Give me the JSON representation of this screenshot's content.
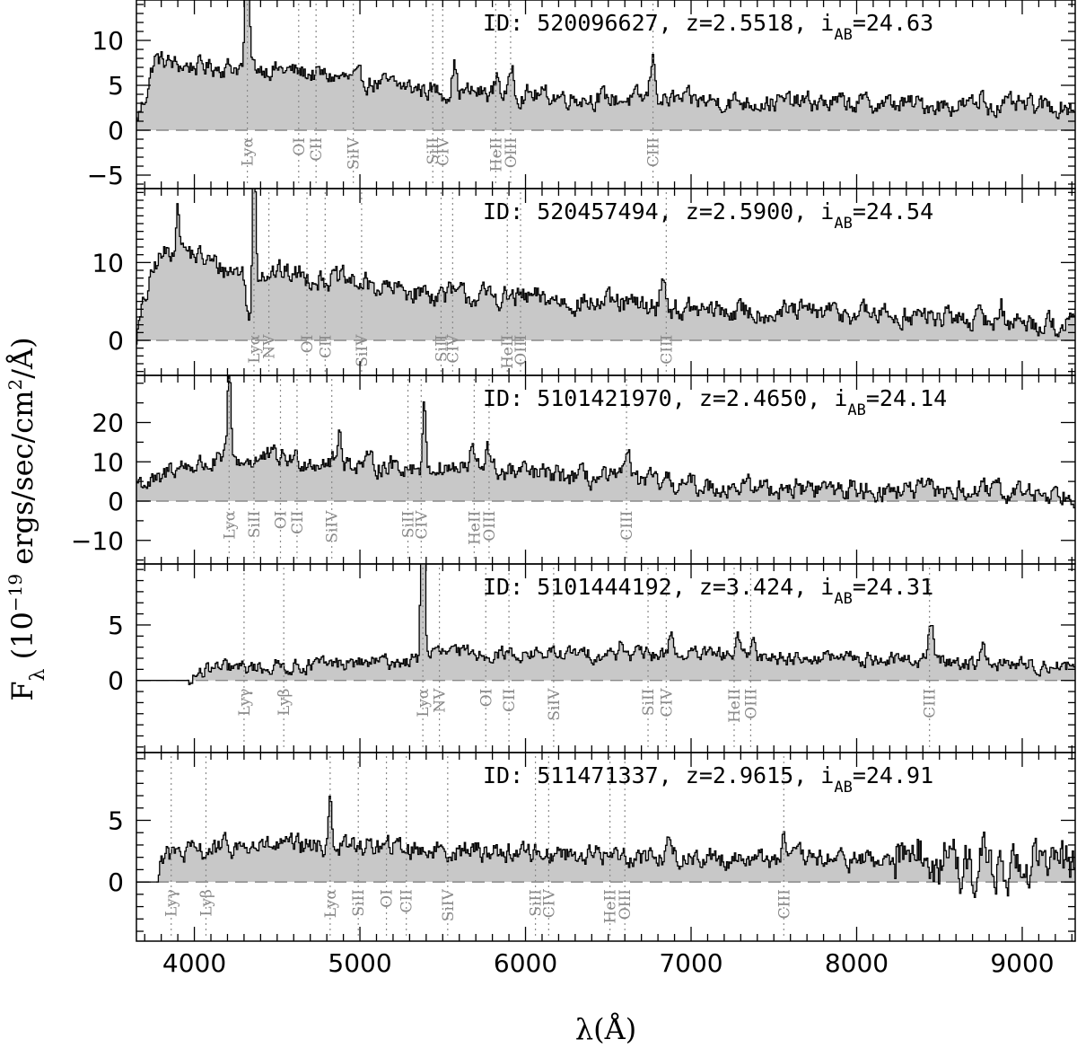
{
  "chart_data": {
    "type": "line",
    "xlabel": "λ(Å)",
    "ylabel": "Fλ (10⁻¹⁹ ergs/sec/cm²/Å)",
    "xlim": [
      3650,
      9320
    ],
    "x_ticks": [
      4000,
      5000,
      6000,
      7000,
      8000,
      9000
    ],
    "grid": false,
    "legend": "none",
    "colors": {
      "fill": "#c8c8c8",
      "line": "#000000",
      "marker": "#8a8a8a",
      "zero_line": "#888888"
    },
    "panels": [
      {
        "id_label": "ID: 520096627, z=2.5518, i",
        "id_sub": "AB",
        "id_mag": "=24.63",
        "ylim": [
          -6.5,
          14.5
        ],
        "yticks": [
          -5,
          0,
          5,
          10
        ],
        "ytick_labels": [
          "−5",
          "0",
          "5",
          "10"
        ],
        "continuum": [
          [
            3650,
            1.0
          ],
          [
            3700,
            3.5
          ],
          [
            3760,
            8.0
          ],
          [
            3900,
            7.2
          ],
          [
            4400,
            7.0
          ],
          [
            4700,
            6.3
          ],
          [
            5000,
            5.5
          ],
          [
            5500,
            4.3
          ],
          [
            6000,
            4.0
          ],
          [
            6500,
            3.5
          ],
          [
            7000,
            3.3
          ],
          [
            8000,
            3.0
          ],
          [
            9300,
            2.6
          ]
        ],
        "noise": 0.9,
        "emission": [
          [
            4320,
            22,
            10
          ],
          [
            5570,
            3.2,
            12
          ],
          [
            5830,
            2.2,
            12
          ],
          [
            5920,
            3.0,
            12
          ],
          [
            6770,
            4.5,
            16
          ],
          [
            8760,
            2.0,
            10
          ]
        ],
        "lines": [
          [
            "Lyα",
            4320
          ],
          [
            "OI",
            4630
          ],
          [
            "CII",
            4735
          ],
          [
            "SiIV",
            4960
          ],
          [
            "SiII",
            5440
          ],
          [
            "CIV",
            5500
          ],
          [
            "HeII",
            5820
          ],
          [
            "OIII",
            5910
          ],
          [
            "CIII",
            6770
          ]
        ],
        "label_y": -0.4
      },
      {
        "id_label": "ID: 520457494, z=2.5900, i",
        "id_sub": "AB",
        "id_mag": "=24.54",
        "ylim": [
          -4.5,
          19.5
        ],
        "yticks": [
          0,
          10
        ],
        "ytick_labels": [
          "0",
          "10"
        ],
        "continuum": [
          [
            3650,
            0.5
          ],
          [
            3700,
            5.0
          ],
          [
            3780,
            10.5
          ],
          [
            3900,
            12.0
          ],
          [
            4200,
            9.0
          ],
          [
            4400,
            9.0
          ],
          [
            4800,
            8.0
          ],
          [
            5200,
            6.5
          ],
          [
            5600,
            5.8
          ],
          [
            6000,
            5.4
          ],
          [
            6500,
            4.7
          ],
          [
            7000,
            3.8
          ],
          [
            8000,
            3.5
          ],
          [
            9300,
            2.0
          ]
        ],
        "noise": 1.2,
        "emission": [
          [
            3900,
            5.0,
            12
          ],
          [
            4360,
            22,
            10
          ],
          [
            6830,
            4.5,
            15
          ],
          [
            8870,
            2.5,
            12
          ]
        ],
        "absorption": [
          [
            4340,
            8.0,
            20
          ]
        ],
        "lines": [
          [
            "Lyα",
            4360
          ],
          [
            "NV",
            4450
          ],
          [
            "OI",
            4680
          ],
          [
            "CII",
            4790
          ],
          [
            "SiIV",
            5010
          ],
          [
            "SiII",
            5490
          ],
          [
            "CIV",
            5560
          ],
          [
            "HeII",
            5890
          ],
          [
            "OIII",
            5970
          ],
          [
            "CIII",
            6850
          ]
        ],
        "label_y": 1.2
      },
      {
        "id_label": "ID: 5101421970, z=2.4650, i",
        "id_sub": "AB",
        "id_mag": "=24.14",
        "ylim": [
          -16,
          32
        ],
        "yticks": [
          -10,
          0,
          10,
          20
        ],
        "ytick_labels": [
          "−10",
          "0",
          "10",
          "20"
        ],
        "continuum": [
          [
            3650,
            5.0
          ],
          [
            3800,
            4.5
          ],
          [
            3850,
            8.5
          ],
          [
            4200,
            10.0
          ],
          [
            4500,
            11.0
          ],
          [
            5000,
            9.5
          ],
          [
            5500,
            8.5
          ],
          [
            6000,
            7.0
          ],
          [
            6500,
            5.5
          ],
          [
            7000,
            4.0
          ],
          [
            8000,
            3.0
          ],
          [
            9300,
            2.0
          ]
        ],
        "noise": 2.2,
        "emission": [
          [
            4210,
            24,
            10
          ],
          [
            4880,
            8.0,
            12
          ],
          [
            5390,
            15,
            10
          ],
          [
            5680,
            6.0,
            12
          ],
          [
            5770,
            8.0,
            12
          ],
          [
            6620,
            10,
            14
          ]
        ],
        "lines": [
          [
            "Lyα",
            4210
          ],
          [
            "SiII",
            4360
          ],
          [
            "OI",
            4520
          ],
          [
            "CII",
            4620
          ],
          [
            "SiIV",
            4830
          ],
          [
            "SiII",
            5290
          ],
          [
            "CIV",
            5370
          ],
          [
            "HeII",
            5690
          ],
          [
            "OIII",
            5780
          ],
          [
            "CIII",
            6610
          ]
        ],
        "label_y": -1.5
      },
      {
        "id_label": "ID: 5101444192, z=3.424, i",
        "id_sub": "AB",
        "id_mag": "=24.31",
        "ylim": [
          -6.5,
          10.5
        ],
        "yticks": [
          0,
          5
        ],
        "ytick_labels": [
          "0",
          "5"
        ],
        "continuum": [
          [
            3650,
            0.0
          ],
          [
            3960,
            0.0
          ],
          [
            4000,
            0.3
          ],
          [
            4100,
            1.0
          ],
          [
            5380,
            1.8
          ],
          [
            5420,
            2.5
          ],
          [
            6000,
            2.4
          ],
          [
            7000,
            2.3
          ],
          [
            8000,
            2.0
          ],
          [
            9300,
            1.3
          ]
        ],
        "noise": 0.55,
        "emission": [
          [
            5380,
            24,
            10
          ],
          [
            6580,
            1.5,
            12
          ],
          [
            6880,
            2.3,
            12
          ],
          [
            7280,
            1.6,
            12
          ],
          [
            7380,
            1.8,
            12
          ],
          [
            8450,
            3.5,
            15
          ],
          [
            8760,
            1.5,
            12
          ]
        ],
        "lines": [
          [
            "Lyγ",
            4300
          ],
          [
            "Lyβ",
            4540
          ],
          [
            "Lyα",
            5380
          ],
          [
            "NV",
            5480
          ],
          [
            "OI",
            5760
          ],
          [
            "CII",
            5900
          ],
          [
            "SiIV",
            6170
          ],
          [
            "SiII",
            6740
          ],
          [
            "CIV",
            6850
          ],
          [
            "HeII",
            7260
          ],
          [
            "OIII",
            7360
          ],
          [
            "CIII",
            8440
          ]
        ],
        "label_y": -0.4
      },
      {
        "id_label": "ID: 511471337, z=2.9615, i",
        "id_sub": "AB",
        "id_mag": "=24.91",
        "ylim": [
          -4.8,
          10.5
        ],
        "yticks": [
          0,
          5
        ],
        "ytick_labels": [
          "0",
          "5"
        ],
        "continuum": [
          [
            3650,
            0.0
          ],
          [
            3780,
            0.0
          ],
          [
            3800,
            2.0
          ],
          [
            4200,
            2.8
          ],
          [
            5000,
            2.9
          ],
          [
            6000,
            2.4
          ],
          [
            7000,
            2.0
          ],
          [
            8000,
            1.8
          ],
          [
            9300,
            1.5
          ]
        ],
        "noise": 0.7,
        "emission": [
          [
            4820,
            4.5,
            10
          ],
          [
            6860,
            1.3,
            12
          ],
          [
            7560,
            1.6,
            14
          ]
        ],
        "extra_noise_from": 8200,
        "extra_noise": 1.5,
        "lines": [
          [
            "Lyγ",
            3860
          ],
          [
            "Lyβ",
            4070
          ],
          [
            "Lyα",
            4820
          ],
          [
            "SiII",
            4990
          ],
          [
            "OI",
            5160
          ],
          [
            "CII",
            5280
          ],
          [
            "SiIV",
            5530
          ],
          [
            "SiII",
            6060
          ],
          [
            "CIV",
            6140
          ],
          [
            "HeII",
            6510
          ],
          [
            "OIII",
            6600
          ],
          [
            "CIII",
            7560
          ]
        ],
        "label_y": -0.3
      }
    ]
  }
}
